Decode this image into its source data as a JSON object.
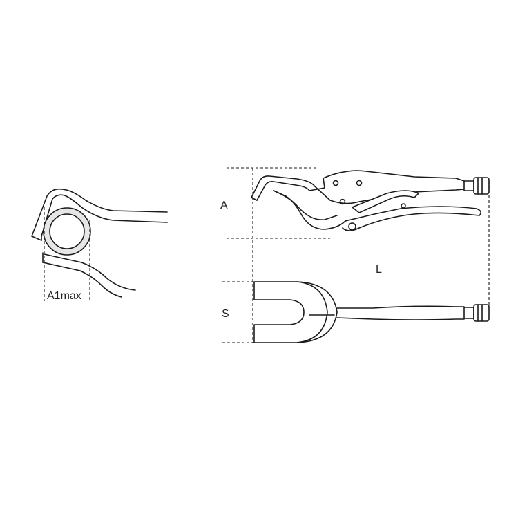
{
  "labels": {
    "a1max": "A1max",
    "a": "A",
    "l": "L",
    "s": "S"
  },
  "colors": {
    "line": "#1a1a1a",
    "shade": "#e6e6e6",
    "background": "#ffffff"
  }
}
